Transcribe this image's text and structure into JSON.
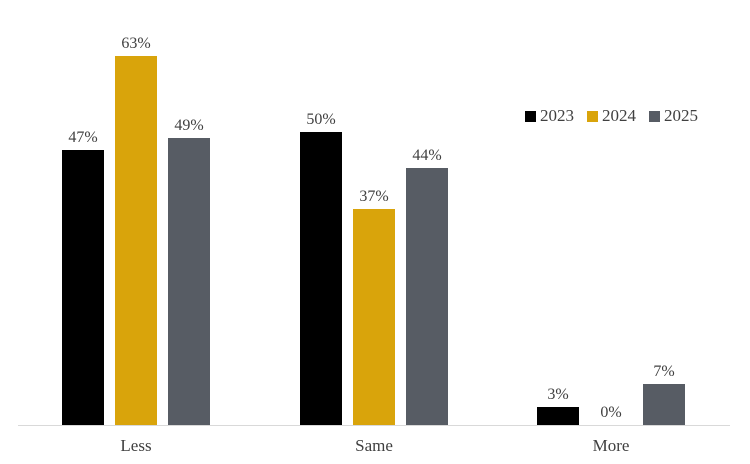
{
  "chart_data": {
    "type": "bar",
    "title": "",
    "xlabel": "",
    "ylabel": "",
    "categories": [
      "Less",
      "Same",
      "More"
    ],
    "series": [
      {
        "name": "2023",
        "color": "#000000",
        "values": [
          47,
          50,
          3
        ]
      },
      {
        "name": "2024",
        "color": "#d9a40b",
        "values": [
          63,
          37,
          0
        ]
      },
      {
        "name": "2025",
        "color": "#575c64",
        "values": [
          49,
          44,
          7
        ]
      }
    ],
    "value_suffix": "%",
    "ylim": [
      0,
      70
    ],
    "grid": false,
    "legend_position": "top-right"
  },
  "colors": {
    "background": "#ffffff",
    "text": "#404040",
    "axis_line": "#d9d9d9"
  }
}
